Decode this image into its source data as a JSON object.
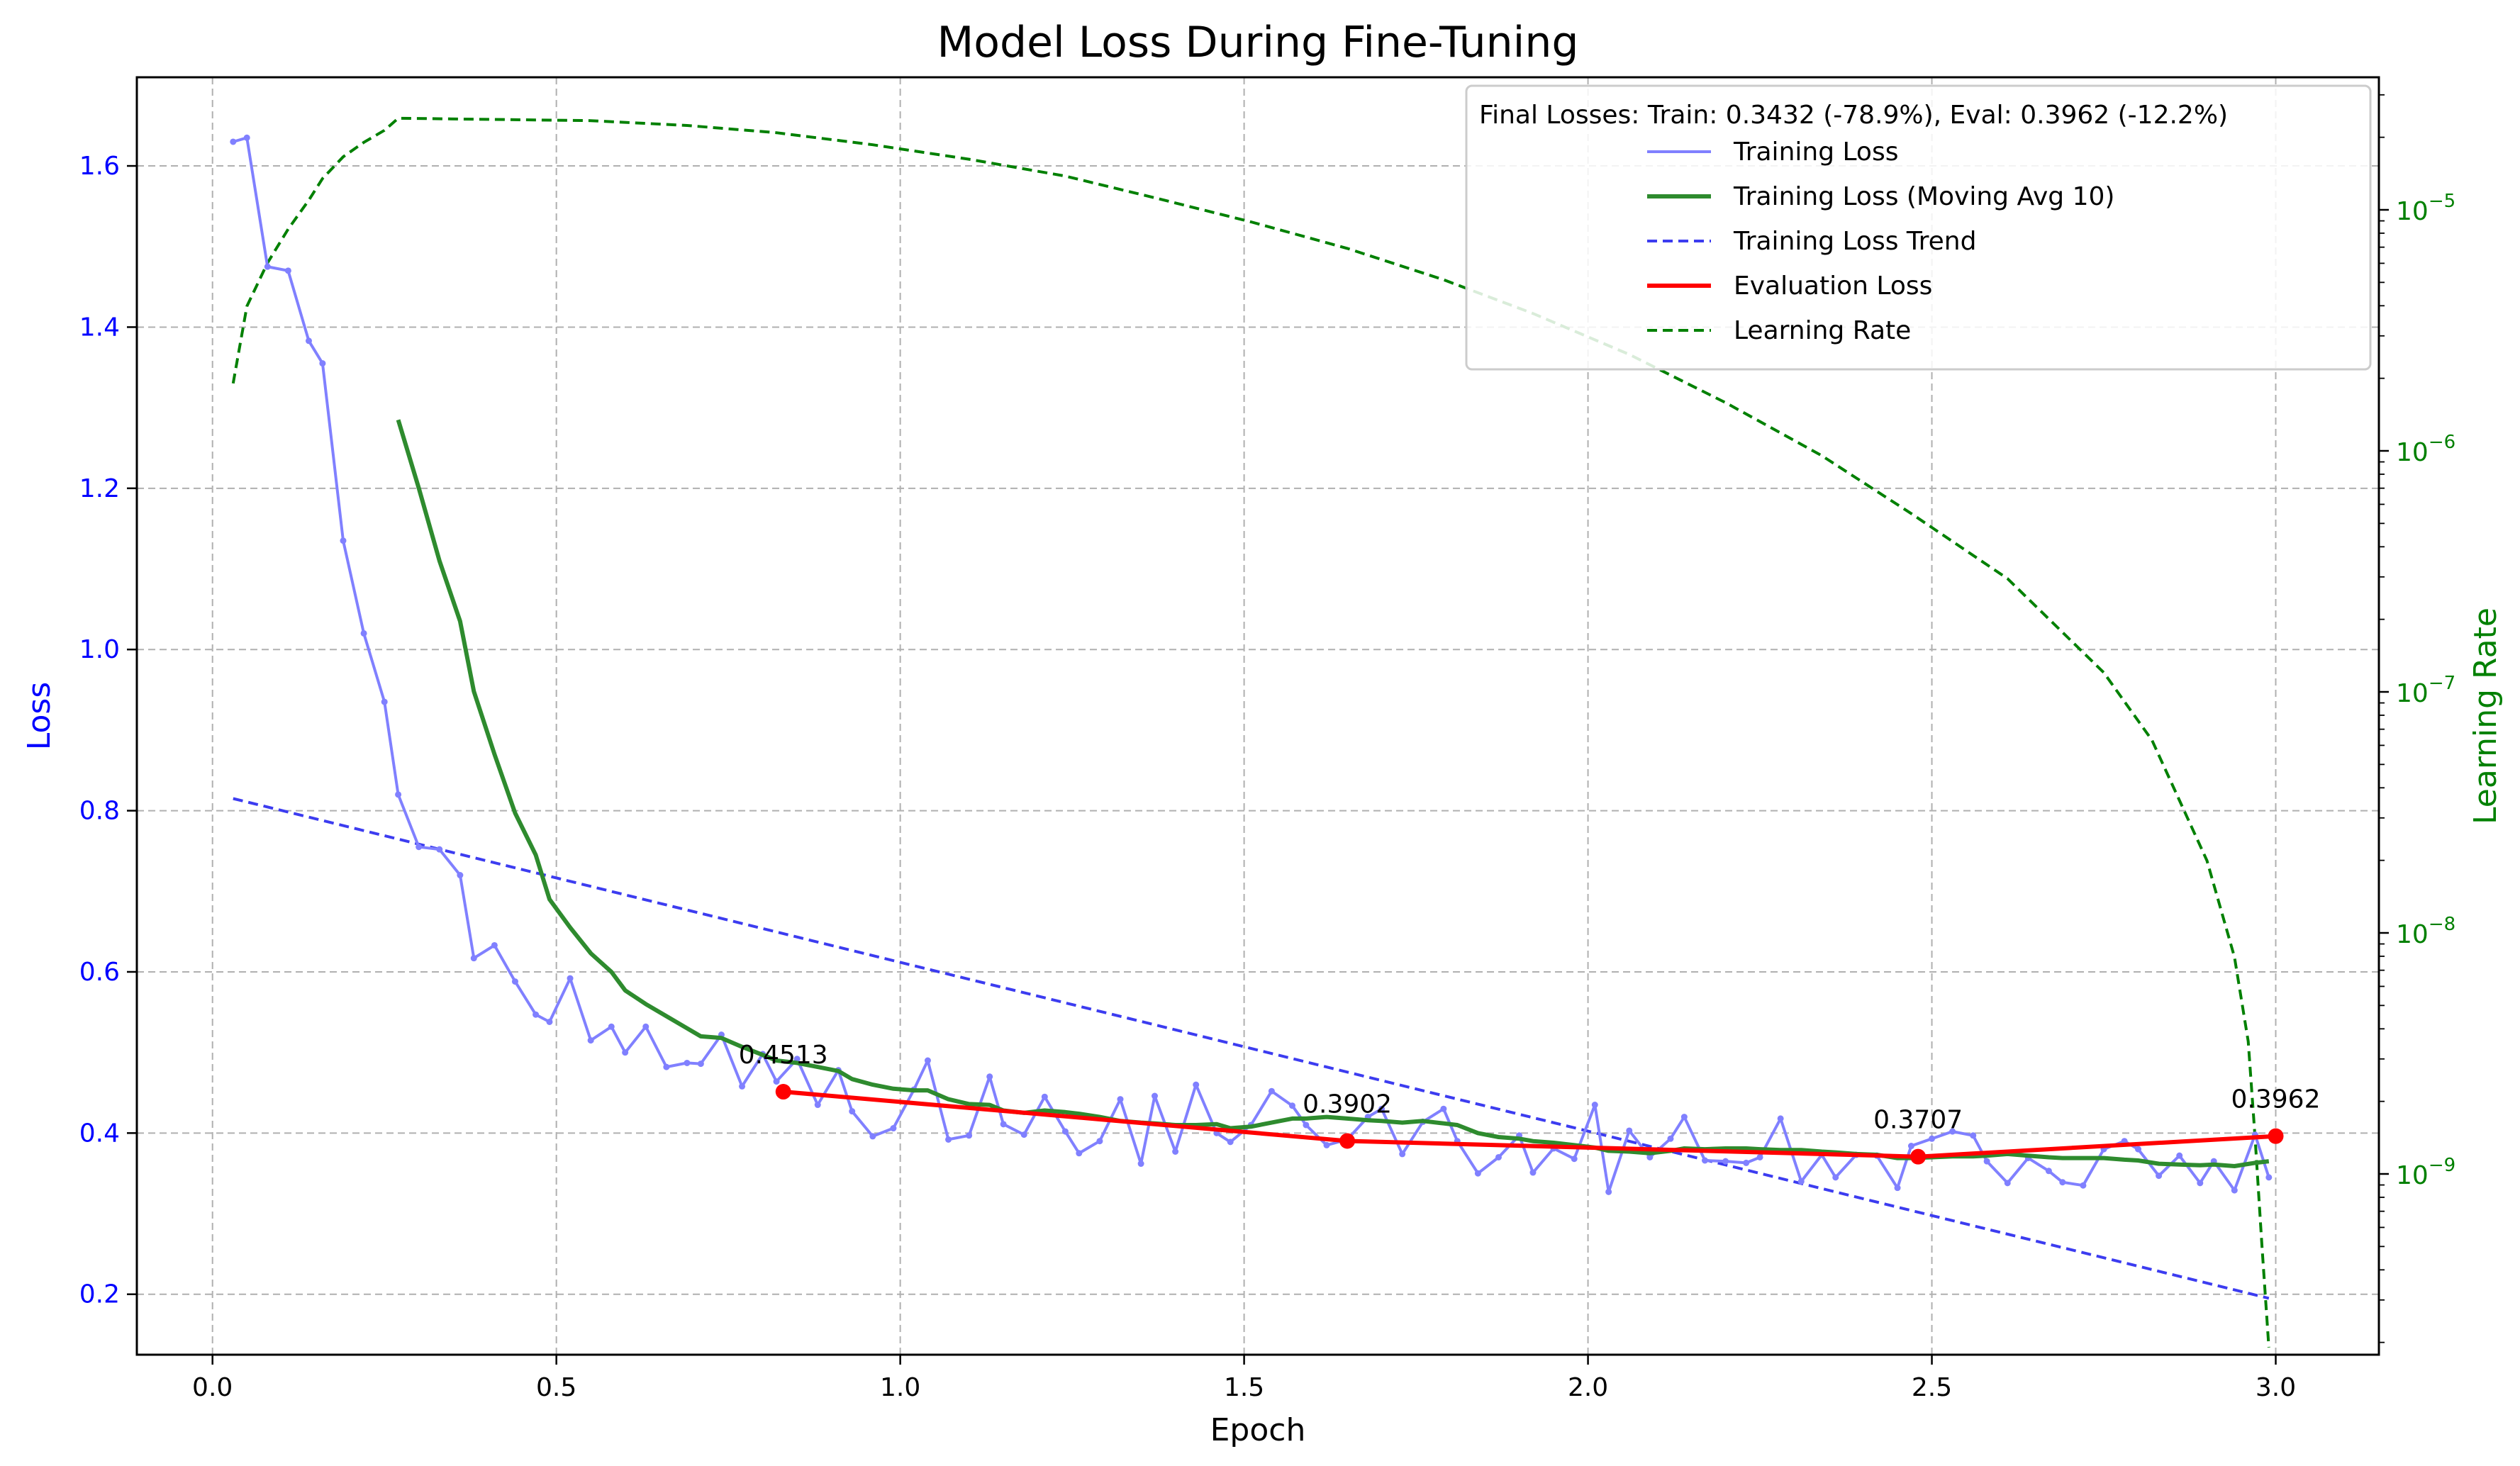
{
  "chart_data": {
    "type": "line",
    "title": "Model Loss During Fine-Tuning",
    "xlabel": "Epoch",
    "ylabel": "Loss",
    "y2label": "Learning Rate",
    "xlim": [
      -0.11,
      3.15
    ],
    "ylim": [
      0.125,
      1.71
    ],
    "y2_scale": "log",
    "y2lim_log10": [
      -9.75,
      -4.45
    ],
    "grid": true,
    "legend_position": "top-right",
    "legend_title": "Final Losses: Train: 0.3432 (-78.9%), Eval: 0.3962 (-12.2%)",
    "x_ticks": [
      {
        "value": 0.0,
        "label": "0.0"
      },
      {
        "value": 0.5,
        "label": "0.5"
      },
      {
        "value": 1.0,
        "label": "1.0"
      },
      {
        "value": 1.5,
        "label": "1.5"
      },
      {
        "value": 2.0,
        "label": "2.0"
      },
      {
        "value": 2.5,
        "label": "2.5"
      },
      {
        "value": 3.0,
        "label": "3.0"
      }
    ],
    "y_ticks": [
      {
        "value": 0.2,
        "label": "0.2"
      },
      {
        "value": 0.4,
        "label": "0.4"
      },
      {
        "value": 0.6,
        "label": "0.6"
      },
      {
        "value": 0.8,
        "label": "0.8"
      },
      {
        "value": 1.0,
        "label": "1.0"
      },
      {
        "value": 1.2,
        "label": "1.2"
      },
      {
        "value": 1.4,
        "label": "1.4"
      },
      {
        "value": 1.6,
        "label": "1.6"
      }
    ],
    "y2_ticks": [
      {
        "exp": -9,
        "label": "10",
        "sup": "−9"
      },
      {
        "exp": -8,
        "label": "10",
        "sup": "−8"
      },
      {
        "exp": -7,
        "label": "10",
        "sup": "−7"
      },
      {
        "exp": -6,
        "label": "10",
        "sup": "−6"
      },
      {
        "exp": -5,
        "label": "10",
        "sup": "−5"
      }
    ],
    "colors": {
      "loss_axis": "#0000ff",
      "lr_axis": "#008000",
      "training": "#8080ff",
      "moving_avg": "#2e8b2e",
      "trend": "#3c3cf0",
      "eval": "#ff0000",
      "lr": "#008000"
    },
    "series": [
      {
        "name": "Training Loss",
        "key": "training",
        "x": [
          0.03,
          0.05,
          0.08,
          0.11,
          0.14,
          0.16,
          0.19,
          0.22,
          0.25,
          0.27,
          0.3,
          0.33,
          0.36,
          0.38,
          0.41,
          0.44,
          0.47,
          0.49,
          0.52,
          0.55,
          0.58,
          0.6,
          0.63,
          0.66,
          0.69,
          0.71,
          0.74,
          0.77,
          0.8,
          0.82,
          0.85,
          0.88,
          0.91,
          0.93,
          0.96,
          0.99,
          1.02,
          1.04,
          1.07,
          1.1,
          1.13,
          1.15,
          1.18,
          1.21,
          1.24,
          1.26,
          1.29,
          1.32,
          1.35,
          1.37,
          1.4,
          1.43,
          1.46,
          1.48,
          1.51,
          1.54,
          1.57,
          1.59,
          1.62,
          1.65,
          1.68,
          1.7,
          1.73,
          1.76,
          1.79,
          1.81,
          1.84,
          1.87,
          1.9,
          1.92,
          1.95,
          1.98,
          2.01,
          2.03,
          2.06,
          2.09,
          2.12,
          2.14,
          2.17,
          2.2,
          2.23,
          2.25,
          2.28,
          2.31,
          2.34,
          2.36,
          2.39,
          2.42,
          2.45,
          2.47,
          2.5,
          2.53,
          2.56,
          2.58,
          2.61,
          2.64,
          2.67,
          2.69,
          2.72,
          2.75,
          2.78,
          2.8,
          2.83,
          2.86,
          2.89,
          2.91,
          2.94,
          2.97,
          2.99
        ],
        "y": [
          1.63,
          1.635,
          1.475,
          1.47,
          1.383,
          1.355,
          1.135,
          1.02,
          0.935,
          0.82,
          0.755,
          0.752,
          0.72,
          0.617,
          0.633,
          0.588,
          0.547,
          0.538,
          0.592,
          0.515,
          0.532,
          0.5,
          0.532,
          0.482,
          0.487,
          0.486,
          0.522,
          0.458,
          0.498,
          0.464,
          0.492,
          0.435,
          0.478,
          0.427,
          0.396,
          0.406,
          0.454,
          0.49,
          0.392,
          0.397,
          0.47,
          0.411,
          0.398,
          0.445,
          0.402,
          0.375,
          0.39,
          0.442,
          0.362,
          0.446,
          0.377,
          0.46,
          0.4,
          0.389,
          0.41,
          0.452,
          0.434,
          0.41,
          0.385,
          0.392,
          0.42,
          0.43,
          0.374,
          0.414,
          0.43,
          0.39,
          0.35,
          0.37,
          0.397,
          0.351,
          0.381,
          0.368,
          0.435,
          0.327,
          0.403,
          0.37,
          0.393,
          0.42,
          0.366,
          0.365,
          0.363,
          0.37,
          0.418,
          0.34,
          0.373,
          0.345,
          0.373,
          0.372,
          0.332,
          0.384,
          0.393,
          0.402,
          0.397,
          0.365,
          0.338,
          0.369,
          0.353,
          0.339,
          0.335,
          0.38,
          0.39,
          0.38,
          0.347,
          0.372,
          0.338,
          0.365,
          0.329,
          0.398,
          0.345
        ]
      },
      {
        "name": "Training Loss (Moving Avg 10)",
        "key": "moving_avg",
        "x": [
          0.27,
          0.3,
          0.33,
          0.36,
          0.38,
          0.41,
          0.44,
          0.47,
          0.49,
          0.52,
          0.55,
          0.58,
          0.6,
          0.63,
          0.66,
          0.69,
          0.71,
          0.74,
          0.77,
          0.8,
          0.82,
          0.85,
          0.88,
          0.91,
          0.93,
          0.96,
          0.99,
          1.02,
          1.04,
          1.07,
          1.1,
          1.13,
          1.15,
          1.18,
          1.21,
          1.24,
          1.26,
          1.29,
          1.32,
          1.35,
          1.37,
          1.4,
          1.43,
          1.46,
          1.48,
          1.51,
          1.54,
          1.57,
          1.59,
          1.62,
          1.65,
          1.68,
          1.7,
          1.73,
          1.76,
          1.79,
          1.81,
          1.84,
          1.87,
          1.9,
          1.92,
          1.95,
          1.98,
          2.01,
          2.03,
          2.06,
          2.09,
          2.12,
          2.14,
          2.17,
          2.2,
          2.23,
          2.25,
          2.28,
          2.31,
          2.34,
          2.36,
          2.39,
          2.42,
          2.45,
          2.47,
          2.5,
          2.53,
          2.56,
          2.58,
          2.61,
          2.64,
          2.67,
          2.69,
          2.72,
          2.75,
          2.78,
          2.8,
          2.83,
          2.86,
          2.89,
          2.91,
          2.94,
          2.97,
          2.99
        ],
        "y": [
          1.285,
          1.2,
          1.11,
          1.035,
          0.948,
          0.87,
          0.797,
          0.745,
          0.69,
          0.655,
          0.623,
          0.6,
          0.577,
          0.56,
          0.545,
          0.53,
          0.52,
          0.518,
          0.507,
          0.497,
          0.49,
          0.487,
          0.482,
          0.477,
          0.467,
          0.46,
          0.455,
          0.453,
          0.453,
          0.442,
          0.436,
          0.435,
          0.428,
          0.425,
          0.428,
          0.426,
          0.424,
          0.42,
          0.415,
          0.413,
          0.412,
          0.41,
          0.41,
          0.411,
          0.406,
          0.408,
          0.413,
          0.418,
          0.418,
          0.42,
          0.418,
          0.416,
          0.415,
          0.413,
          0.415,
          0.412,
          0.41,
          0.4,
          0.395,
          0.393,
          0.39,
          0.388,
          0.385,
          0.382,
          0.378,
          0.377,
          0.375,
          0.378,
          0.381,
          0.38,
          0.381,
          0.381,
          0.38,
          0.379,
          0.379,
          0.377,
          0.376,
          0.374,
          0.373,
          0.369,
          0.369,
          0.37,
          0.371,
          0.371,
          0.372,
          0.374,
          0.372,
          0.37,
          0.369,
          0.369,
          0.369,
          0.367,
          0.366,
          0.362,
          0.361,
          0.36,
          0.361,
          0.359,
          0.363,
          0.365
        ]
      },
      {
        "name": "Training Loss Trend",
        "key": "trend",
        "x": [
          0.03,
          2.99
        ],
        "y": [
          0.815,
          0.195
        ]
      },
      {
        "name": "Evaluation Loss",
        "key": "eval",
        "x": [
          0.83,
          1.65,
          2.48,
          3.0
        ],
        "y": [
          0.4513,
          0.3902,
          0.3707,
          0.3962
        ],
        "labels": [
          "0.4513",
          "0.3902",
          "0.3707",
          "0.3962"
        ]
      },
      {
        "name": "Learning Rate",
        "key": "lr",
        "x": [
          0.03,
          0.05,
          0.08,
          0.11,
          0.14,
          0.16,
          0.19,
          0.22,
          0.25,
          0.27,
          0.41,
          0.55,
          0.69,
          0.82,
          0.96,
          1.1,
          1.24,
          1.37,
          1.51,
          1.65,
          1.79,
          1.92,
          2.06,
          2.2,
          2.34,
          2.47,
          2.61,
          2.75,
          2.82,
          2.86,
          2.9,
          2.92,
          2.94,
          2.96,
          2.97,
          2.98,
          2.99
        ],
        "lr_log10": [
          -5.72,
          -5.4,
          -5.22,
          -5.08,
          -4.96,
          -4.87,
          -4.78,
          -4.72,
          -4.67,
          -4.62,
          -4.625,
          -4.63,
          -4.65,
          -4.68,
          -4.73,
          -4.79,
          -4.86,
          -4.95,
          -5.05,
          -5.16,
          -5.29,
          -5.43,
          -5.6,
          -5.8,
          -6.02,
          -6.26,
          -6.53,
          -6.92,
          -7.2,
          -7.45,
          -7.7,
          -7.9,
          -8.1,
          -8.45,
          -8.85,
          -9.3,
          -9.72
        ]
      }
    ]
  }
}
